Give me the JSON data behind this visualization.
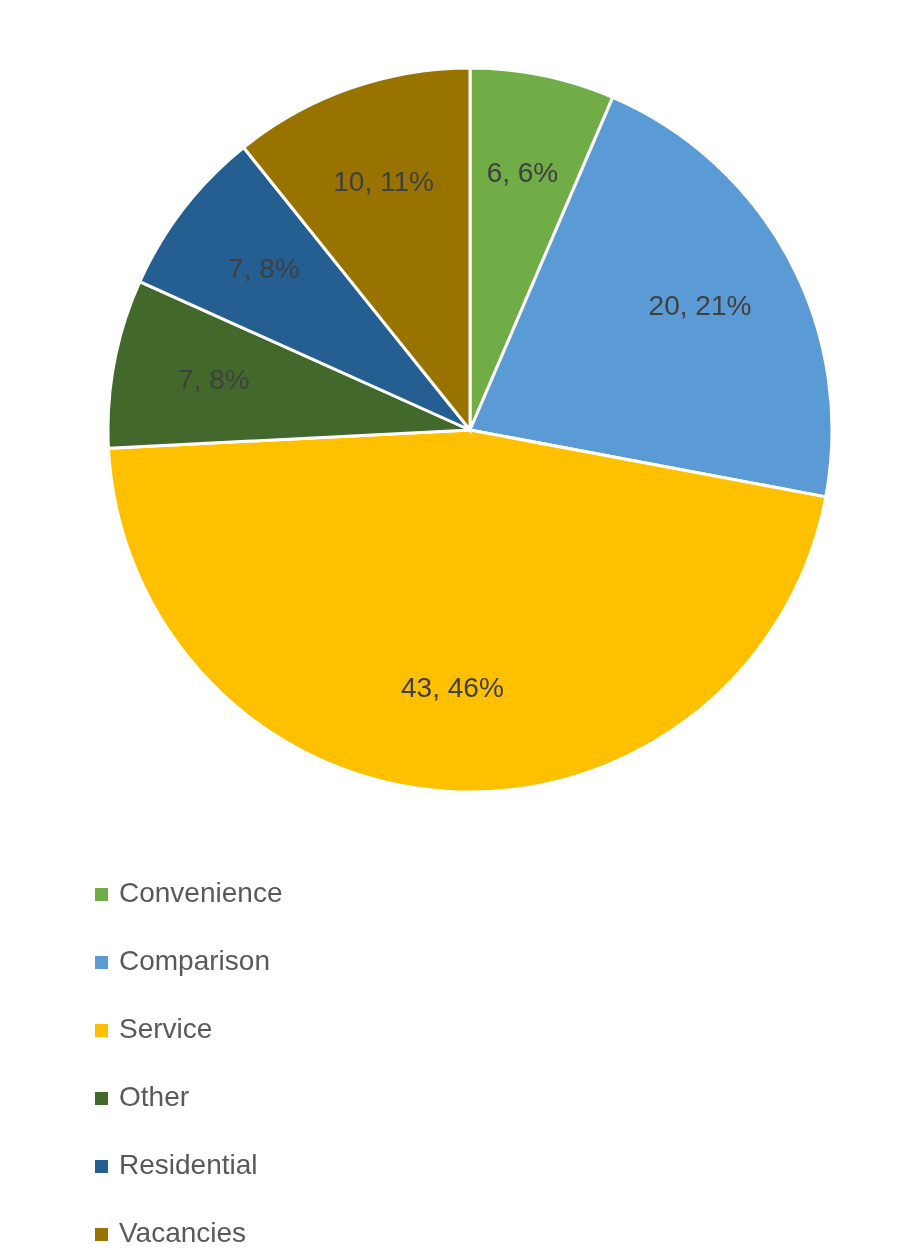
{
  "chart_data": {
    "type": "pie",
    "categories": [
      "Convenience",
      "Comparison",
      "Service",
      "Other",
      "Residential",
      "Vacancies"
    ],
    "values": [
      6,
      20,
      43,
      7,
      7,
      10
    ],
    "colors": [
      "#70ad47",
      "#5b9bd5",
      "#ffc000",
      "#43682b",
      "#255e91",
      "#997300"
    ],
    "value_labels": [
      "6, 6%",
      "20, 21%",
      "43, 46%",
      "7, 8%",
      "7, 8%",
      "10, 11%"
    ],
    "legend": "bottom"
  }
}
